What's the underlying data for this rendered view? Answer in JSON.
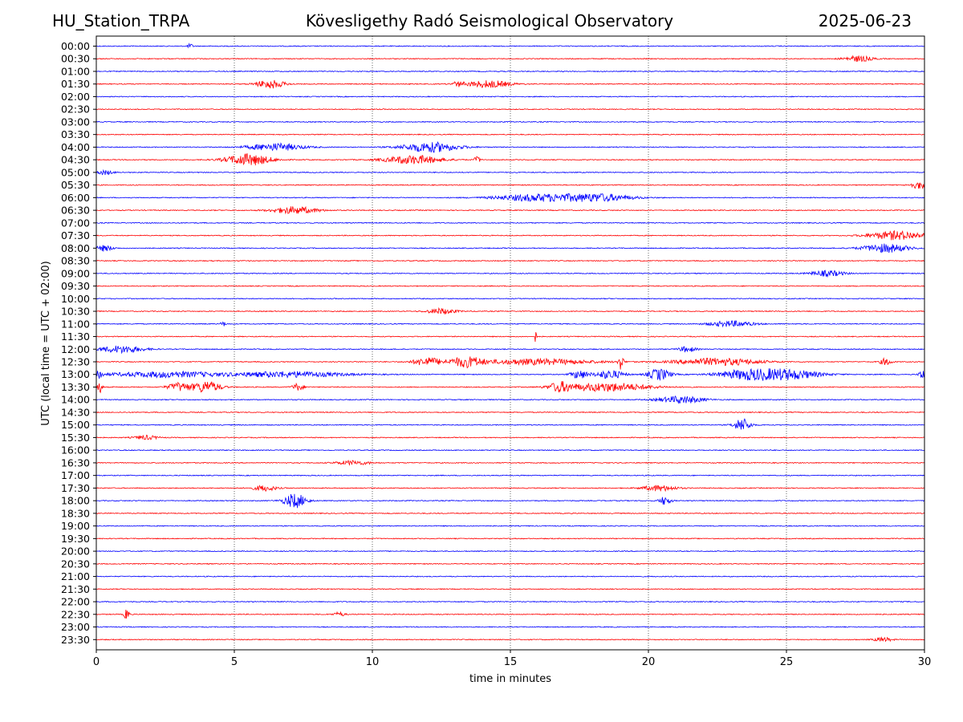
{
  "header": {
    "station": "HU_Station_TRPA",
    "title": "Kövesligethy Radó Seismological Observatory",
    "date": "2025-06-23"
  },
  "chart_data": {
    "type": "line",
    "title": "Kövesligethy Radó Seismological Observatory",
    "xlabel": "time in minutes",
    "ylabel": "UTC (local time = UTC + 02:00)",
    "xlim": [
      0,
      30
    ],
    "xticks": [
      "0",
      "5",
      "10",
      "15",
      "20",
      "25",
      "30"
    ],
    "xtick_values": [
      0,
      5,
      10,
      15,
      20,
      25,
      30
    ],
    "grid": "vertical dotted lines at x ticks",
    "trace_colors": [
      "#0000ff",
      "#ff0000"
    ],
    "traces": [
      {
        "label": "00:00",
        "color": "#0000ff",
        "bursts": [
          [
            3.4,
            0.1,
            0.3
          ]
        ]
      },
      {
        "label": "00:30",
        "color": "#ff0000",
        "bursts": [
          [
            27.6,
            0.5,
            0.4
          ]
        ]
      },
      {
        "label": "01:00",
        "color": "#0000ff",
        "bursts": []
      },
      {
        "label": "01:30",
        "color": "#ff0000",
        "bursts": [
          [
            6.3,
            0.5,
            0.6
          ],
          [
            13.1,
            0.2,
            0.3
          ],
          [
            14.2,
            0.8,
            0.5
          ]
        ]
      },
      {
        "label": "02:00",
        "color": "#0000ff",
        "bursts": []
      },
      {
        "label": "02:30",
        "color": "#ff0000",
        "bursts": []
      },
      {
        "label": "03:00",
        "color": "#0000ff",
        "bursts": []
      },
      {
        "label": "03:30",
        "color": "#ff0000",
        "bursts": []
      },
      {
        "label": "04:00",
        "color": "#0000ff",
        "bursts": [
          [
            6.5,
            1.0,
            0.5
          ],
          [
            12.1,
            1.0,
            0.7
          ]
        ]
      },
      {
        "label": "04:30",
        "color": "#ff0000",
        "bursts": [
          [
            5.5,
            0.8,
            0.8
          ],
          [
            11.5,
            1.0,
            0.6
          ],
          [
            13.8,
            0.1,
            0.5
          ]
        ]
      },
      {
        "label": "05:00",
        "color": "#0000ff",
        "bursts": [
          [
            0.3,
            0.3,
            0.3
          ]
        ]
      },
      {
        "label": "05:30",
        "color": "#ff0000",
        "bursts": [
          [
            29.8,
            0.3,
            0.5
          ]
        ]
      },
      {
        "label": "06:00",
        "color": "#0000ff",
        "bursts": [
          [
            16.0,
            1.5,
            0.5
          ],
          [
            18.2,
            1.2,
            0.5
          ]
        ]
      },
      {
        "label": "06:30",
        "color": "#ff0000",
        "bursts": [
          [
            7.2,
            0.8,
            0.5
          ]
        ]
      },
      {
        "label": "07:00",
        "color": "#0000ff",
        "bursts": []
      },
      {
        "label": "07:30",
        "color": "#ff0000",
        "bursts": [
          [
            29.0,
            1.0,
            0.6
          ]
        ]
      },
      {
        "label": "08:00",
        "color": "#0000ff",
        "bursts": [
          [
            0.3,
            0.3,
            0.4
          ],
          [
            28.6,
            0.8,
            0.6
          ]
        ]
      },
      {
        "label": "08:30",
        "color": "#ff0000",
        "bursts": []
      },
      {
        "label": "09:00",
        "color": "#0000ff",
        "bursts": [
          [
            26.5,
            0.6,
            0.4
          ]
        ]
      },
      {
        "label": "09:30",
        "color": "#ff0000",
        "bursts": []
      },
      {
        "label": "10:00",
        "color": "#0000ff",
        "bursts": []
      },
      {
        "label": "10:30",
        "color": "#ff0000",
        "bursts": [
          [
            12.5,
            0.5,
            0.4
          ]
        ]
      },
      {
        "label": "11:00",
        "color": "#0000ff",
        "bursts": [
          [
            4.6,
            0.1,
            0.3
          ],
          [
            23.0,
            0.8,
            0.4
          ]
        ]
      },
      {
        "label": "11:30",
        "color": "#ff0000",
        "bursts": [
          [
            15.9,
            0.05,
            0.8
          ]
        ]
      },
      {
        "label": "12:00",
        "color": "#0000ff",
        "bursts": [
          [
            0.9,
            0.8,
            0.5
          ],
          [
            21.4,
            0.3,
            0.4
          ]
        ]
      },
      {
        "label": "12:30",
        "color": "#ff0000",
        "bursts": [
          [
            12.0,
            0.5,
            0.6
          ],
          [
            13.4,
            0.6,
            0.7
          ],
          [
            16.0,
            2.0,
            0.4
          ],
          [
            19.0,
            0.1,
            1.0
          ],
          [
            22.5,
            1.5,
            0.5
          ],
          [
            28.6,
            0.2,
            0.5
          ]
        ]
      },
      {
        "label": "13:00",
        "color": "#0000ff",
        "bursts": [
          [
            0.1,
            0.1,
            0.8
          ],
          [
            2.5,
            2.0,
            0.4
          ],
          [
            7.0,
            2.0,
            0.4
          ],
          [
            17.5,
            0.3,
            0.6
          ],
          [
            18.6,
            0.5,
            0.6
          ],
          [
            20.4,
            0.4,
            0.8
          ],
          [
            23.5,
            1.0,
            0.6
          ],
          [
            25.0,
            1.2,
            0.7
          ],
          [
            29.9,
            0.1,
            0.7
          ]
        ]
      },
      {
        "label": "13:30",
        "color": "#ff0000",
        "bursts": [
          [
            0.1,
            0.1,
            0.9
          ],
          [
            3.0,
            0.4,
            0.6
          ],
          [
            4.0,
            0.5,
            0.8
          ],
          [
            7.3,
            0.2,
            0.5
          ],
          [
            16.8,
            0.4,
            0.6
          ],
          [
            18.5,
            1.5,
            0.6
          ]
        ]
      },
      {
        "label": "14:00",
        "color": "#0000ff",
        "bursts": [
          [
            21.2,
            0.8,
            0.5
          ]
        ]
      },
      {
        "label": "14:30",
        "color": "#ff0000",
        "bursts": []
      },
      {
        "label": "15:00",
        "color": "#0000ff",
        "bursts": [
          [
            23.4,
            0.3,
            0.9
          ]
        ]
      },
      {
        "label": "15:30",
        "color": "#ff0000",
        "bursts": [
          [
            1.8,
            0.4,
            0.3
          ]
        ]
      },
      {
        "label": "16:00",
        "color": "#0000ff",
        "bursts": []
      },
      {
        "label": "16:30",
        "color": "#ff0000",
        "bursts": [
          [
            9.3,
            0.6,
            0.3
          ]
        ]
      },
      {
        "label": "17:00",
        "color": "#0000ff",
        "bursts": []
      },
      {
        "label": "17:30",
        "color": "#ff0000",
        "bursts": [
          [
            6.1,
            0.4,
            0.4
          ],
          [
            20.4,
            0.6,
            0.4
          ]
        ]
      },
      {
        "label": "18:00",
        "color": "#0000ff",
        "bursts": [
          [
            7.2,
            0.4,
            1.0
          ],
          [
            20.6,
            0.2,
            0.6
          ]
        ]
      },
      {
        "label": "18:30",
        "color": "#ff0000",
        "bursts": []
      },
      {
        "label": "19:00",
        "color": "#0000ff",
        "bursts": []
      },
      {
        "label": "19:30",
        "color": "#ff0000",
        "bursts": []
      },
      {
        "label": "20:00",
        "color": "#0000ff",
        "bursts": []
      },
      {
        "label": "20:30",
        "color": "#ff0000",
        "bursts": []
      },
      {
        "label": "21:00",
        "color": "#0000ff",
        "bursts": []
      },
      {
        "label": "21:30",
        "color": "#ff0000",
        "bursts": []
      },
      {
        "label": "22:00",
        "color": "#0000ff",
        "bursts": []
      },
      {
        "label": "22:30",
        "color": "#ff0000",
        "bursts": [
          [
            1.1,
            0.08,
            1.0
          ],
          [
            8.8,
            0.2,
            0.3
          ]
        ]
      },
      {
        "label": "23:00",
        "color": "#0000ff",
        "bursts": []
      },
      {
        "label": "23:30",
        "color": "#ff0000",
        "bursts": [
          [
            28.5,
            0.3,
            0.3
          ]
        ]
      }
    ]
  }
}
